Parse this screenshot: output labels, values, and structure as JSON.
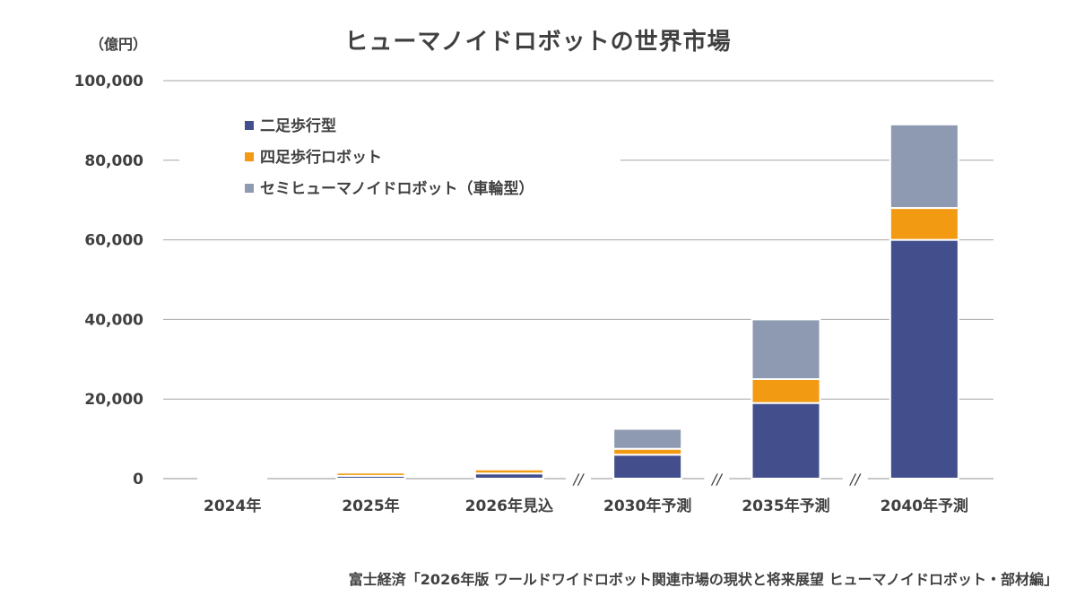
{
  "unit_label": "（億円）",
  "title": "ヒューマノイドロボットの世界市場",
  "source": "富士経済「2026年版 ワールドワイドロボット関連市場の現状と将来展望 ヒューマノイドロボット・部材編」",
  "break_mark": "//",
  "chart_data": {
    "type": "bar",
    "stacked": true,
    "title": "ヒューマノイドロボットの世界市場",
    "ylabel": "（億円）",
    "xlabel": "",
    "ylim": [
      0,
      100000
    ],
    "yticks": [
      0,
      20000,
      40000,
      60000,
      80000,
      100000
    ],
    "ytick_labels": [
      "0",
      "20,000",
      "40,000",
      "60,000",
      "80,000",
      "100,000"
    ],
    "grid": true,
    "legend_position": "top-left",
    "categories": [
      "2024年",
      "2025年",
      "2026年見込",
      "2030年予測",
      "2035年予測",
      "2040年予測"
    ],
    "axis_breaks_before": [
      "2030年予測",
      "2035年予測",
      "2040年予測"
    ],
    "series": [
      {
        "name": "二足歩行型",
        "color": "#434f8c",
        "values": [
          150,
          700,
          1300,
          6000,
          19000,
          60000
        ]
      },
      {
        "name": "四足歩行ロボット",
        "color": "#f29a12",
        "values": [
          350,
          800,
          1000,
          1500,
          6000,
          8000
        ]
      },
      {
        "name": "セミヒューマノイドロボット（車輪型）",
        "color": "#8e9ab1",
        "values": [
          0,
          0,
          0,
          5000,
          15000,
          21000
        ]
      }
    ]
  }
}
